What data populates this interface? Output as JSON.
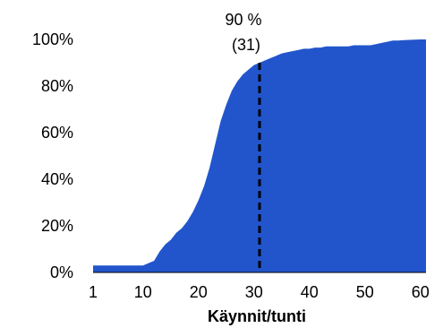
{
  "chart_data": {
    "type": "area",
    "title": "",
    "xlabel": "Käynnit/tunti",
    "ylabel": "",
    "xlim": [
      1,
      61
    ],
    "ylim": [
      0,
      100
    ],
    "grid": false,
    "legend": "none",
    "color": "#2255cc",
    "x_ticks": [
      {
        "value": 1,
        "label": "1"
      },
      {
        "value": 10,
        "label": "10"
      },
      {
        "value": 20,
        "label": "20"
      },
      {
        "value": 30,
        "label": "30"
      },
      {
        "value": 40,
        "label": "40"
      },
      {
        "value": 50,
        "label": "50"
      },
      {
        "value": 60,
        "label": "60"
      }
    ],
    "y_ticks": [
      {
        "value": 0,
        "label": "0%"
      },
      {
        "value": 20,
        "label": "20%"
      },
      {
        "value": 40,
        "label": "40%"
      },
      {
        "value": 60,
        "label": "60%"
      },
      {
        "value": 80,
        "label": "80%"
      },
      {
        "value": 100,
        "label": "100%"
      }
    ],
    "x": [
      1,
      2,
      3,
      4,
      5,
      6,
      7,
      8,
      9,
      10,
      11,
      12,
      13,
      14,
      15,
      16,
      17,
      18,
      19,
      20,
      21,
      22,
      23,
      24,
      25,
      26,
      27,
      28,
      29,
      30,
      31,
      32,
      33,
      34,
      35,
      36,
      37,
      38,
      39,
      40,
      41,
      42,
      43,
      44,
      45,
      46,
      47,
      48,
      49,
      50,
      51,
      52,
      53,
      54,
      55,
      56,
      57,
      58,
      59,
      60,
      61
    ],
    "values": [
      3,
      3,
      3,
      3,
      3,
      3,
      3,
      3,
      3,
      3,
      4,
      5,
      9,
      12,
      14,
      17,
      19,
      22,
      26,
      31,
      37,
      45,
      55,
      65,
      72,
      78,
      82,
      85,
      87,
      89,
      90,
      91,
      92,
      93,
      94,
      94.5,
      95,
      95.5,
      96,
      96,
      96.5,
      96.5,
      97,
      97,
      97,
      97,
      97,
      97.5,
      97.5,
      97.5,
      97.5,
      98,
      98.5,
      99,
      99.5,
      99.5,
      99.7,
      99.8,
      99.9,
      100,
      100
    ],
    "marker": {
      "x": 31,
      "y": 90,
      "label_line1": "90 %",
      "label_line2": "(31)"
    }
  }
}
